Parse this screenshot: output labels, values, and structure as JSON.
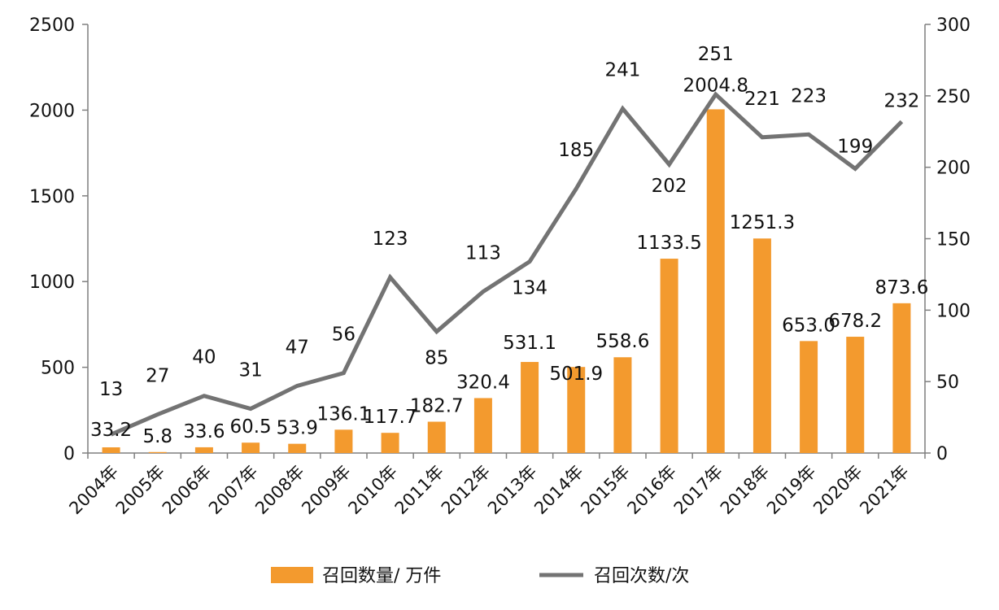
{
  "chart_data": {
    "type": "bar+line",
    "categories": [
      "2004年",
      "2005年",
      "2006年",
      "2007年",
      "2008年",
      "2009年",
      "2010年",
      "2011年",
      "2012年",
      "2013年",
      "2014年",
      "2015年",
      "2016年",
      "2017年",
      "2018年",
      "2019年",
      "2020年",
      "2021年"
    ],
    "bar_labels": [
      "33.2",
      "5.8",
      "33.6",
      "60.5",
      "53.9",
      "136.1",
      "117.7",
      "182.7",
      "320.4",
      "531.1",
      "501.9",
      "558.6",
      "1133.5",
      "2004.8",
      "1251.3",
      "653.0",
      "678.2",
      "873.6"
    ],
    "line_labels": [
      "13",
      "27",
      "40",
      "31",
      "47",
      "56",
      "123",
      "85",
      "113",
      "134",
      "185",
      "241",
      "202",
      "251",
      "221",
      "223",
      "199",
      "232"
    ],
    "series": [
      {
        "name": "召回数量/ 万件",
        "type": "bar",
        "axis": "left",
        "color": "#F39A2E",
        "values": [
          33.2,
          5.8,
          33.6,
          60.5,
          53.9,
          136.1,
          117.7,
          182.7,
          320.4,
          531.1,
          501.9,
          558.6,
          1133.5,
          2004.8,
          1251.3,
          653.0,
          678.2,
          873.6
        ]
      },
      {
        "name": "召回次数/次",
        "type": "line",
        "axis": "right",
        "color": "#737373",
        "values": [
          13,
          27,
          40,
          31,
          47,
          56,
          123,
          85,
          113,
          134,
          185,
          241,
          202,
          251,
          221,
          223,
          199,
          232
        ]
      }
    ],
    "left_axis": {
      "min": 0,
      "max": 2500,
      "ticks": [
        0,
        500,
        1000,
        1500,
        2000,
        2500
      ],
      "tick_labels": [
        "0",
        "500",
        "1000",
        "1500",
        "2000",
        "2500"
      ]
    },
    "right_axis": {
      "min": 0,
      "max": 300,
      "ticks": [
        0,
        50,
        100,
        150,
        200,
        250,
        300
      ],
      "tick_labels": [
        "0",
        "50",
        "100",
        "150",
        "200",
        "250",
        "300"
      ]
    },
    "legend": {
      "position": "bottom",
      "bar_label": "召回数量/ 万件",
      "line_label": "召回次数/次"
    },
    "grid": false
  }
}
